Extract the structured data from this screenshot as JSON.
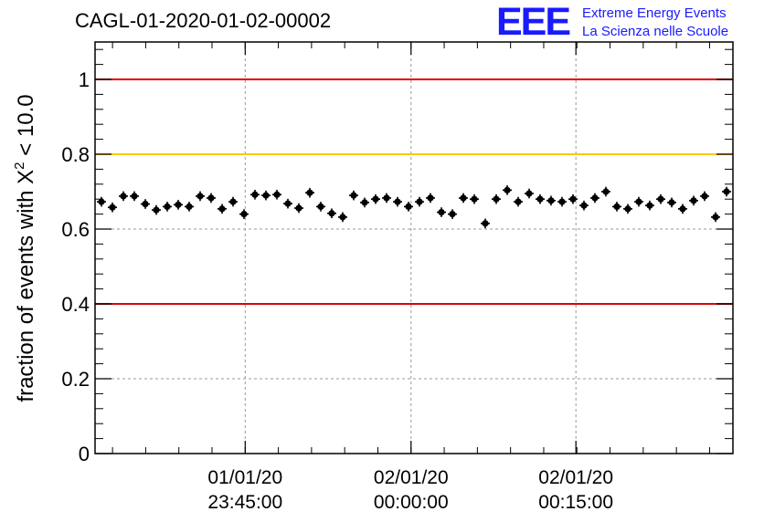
{
  "title": "CAGL-01-2020-01-02-00002",
  "logo": {
    "mark": "EEE",
    "line1": "Extreme Energy Events",
    "line2": "La Scienza nelle Scuole"
  },
  "chart_data": {
    "type": "scatter",
    "title": "CAGL-01-2020-01-02-00002",
    "ylabel_prefix": "fraction of events with X",
    "ylabel_superscript": "2",
    "ylabel_suffix": " < 10.0",
    "ylim": [
      0,
      1.1
    ],
    "yticks": [
      {
        "value": 0,
        "label": "0"
      },
      {
        "value": 0.2,
        "label": "0.2"
      },
      {
        "value": 0.4,
        "label": "0.4"
      },
      {
        "value": 0.6,
        "label": "0.6"
      },
      {
        "value": 0.8,
        "label": "0.8"
      },
      {
        "value": 1,
        "label": "1"
      }
    ],
    "xlim_index": [
      -0.5,
      64.5
    ],
    "xticks": [
      {
        "index": 14.8,
        "date": "01/01/20",
        "time": "23:45:00"
      },
      {
        "index": 31.7,
        "date": "02/01/20",
        "time": "00:00:00"
      },
      {
        "index": 48.5,
        "date": "02/01/20",
        "time": "00:15:00"
      }
    ],
    "grid": {
      "x": true,
      "y": true,
      "style": "dashed"
    },
    "reference_lines": [
      {
        "y": 1.0,
        "color": "#e00000"
      },
      {
        "y": 0.8,
        "color": "#ffc800"
      },
      {
        "y": 0.4,
        "color": "#e00000"
      }
    ],
    "series": [
      {
        "values": [
          0.673,
          0.658,
          0.688,
          0.688,
          0.667,
          0.651,
          0.66,
          0.665,
          0.66,
          0.688,
          0.683,
          0.654,
          0.673,
          0.64,
          0.692,
          0.69,
          0.692,
          0.668,
          0.656,
          0.697,
          0.66,
          0.642,
          0.632,
          0.69,
          0.671,
          0.68,
          0.683,
          0.673,
          0.66,
          0.673,
          0.683,
          0.645,
          0.64,
          0.683,
          0.68,
          0.615,
          0.68,
          0.704,
          0.673,
          0.695,
          0.68,
          0.676,
          0.673,
          0.68,
          0.663,
          0.683,
          0.7,
          0.66,
          0.654,
          0.673,
          0.663,
          0.68,
          0.671,
          0.654,
          0.676,
          0.688,
          0.632,
          0.7
        ],
        "error": 0.013,
        "color": "#000000"
      }
    ]
  },
  "colors": {
    "red_line": "#e00000",
    "yellow_line": "#ffc800",
    "logo": "#1a1aff"
  }
}
